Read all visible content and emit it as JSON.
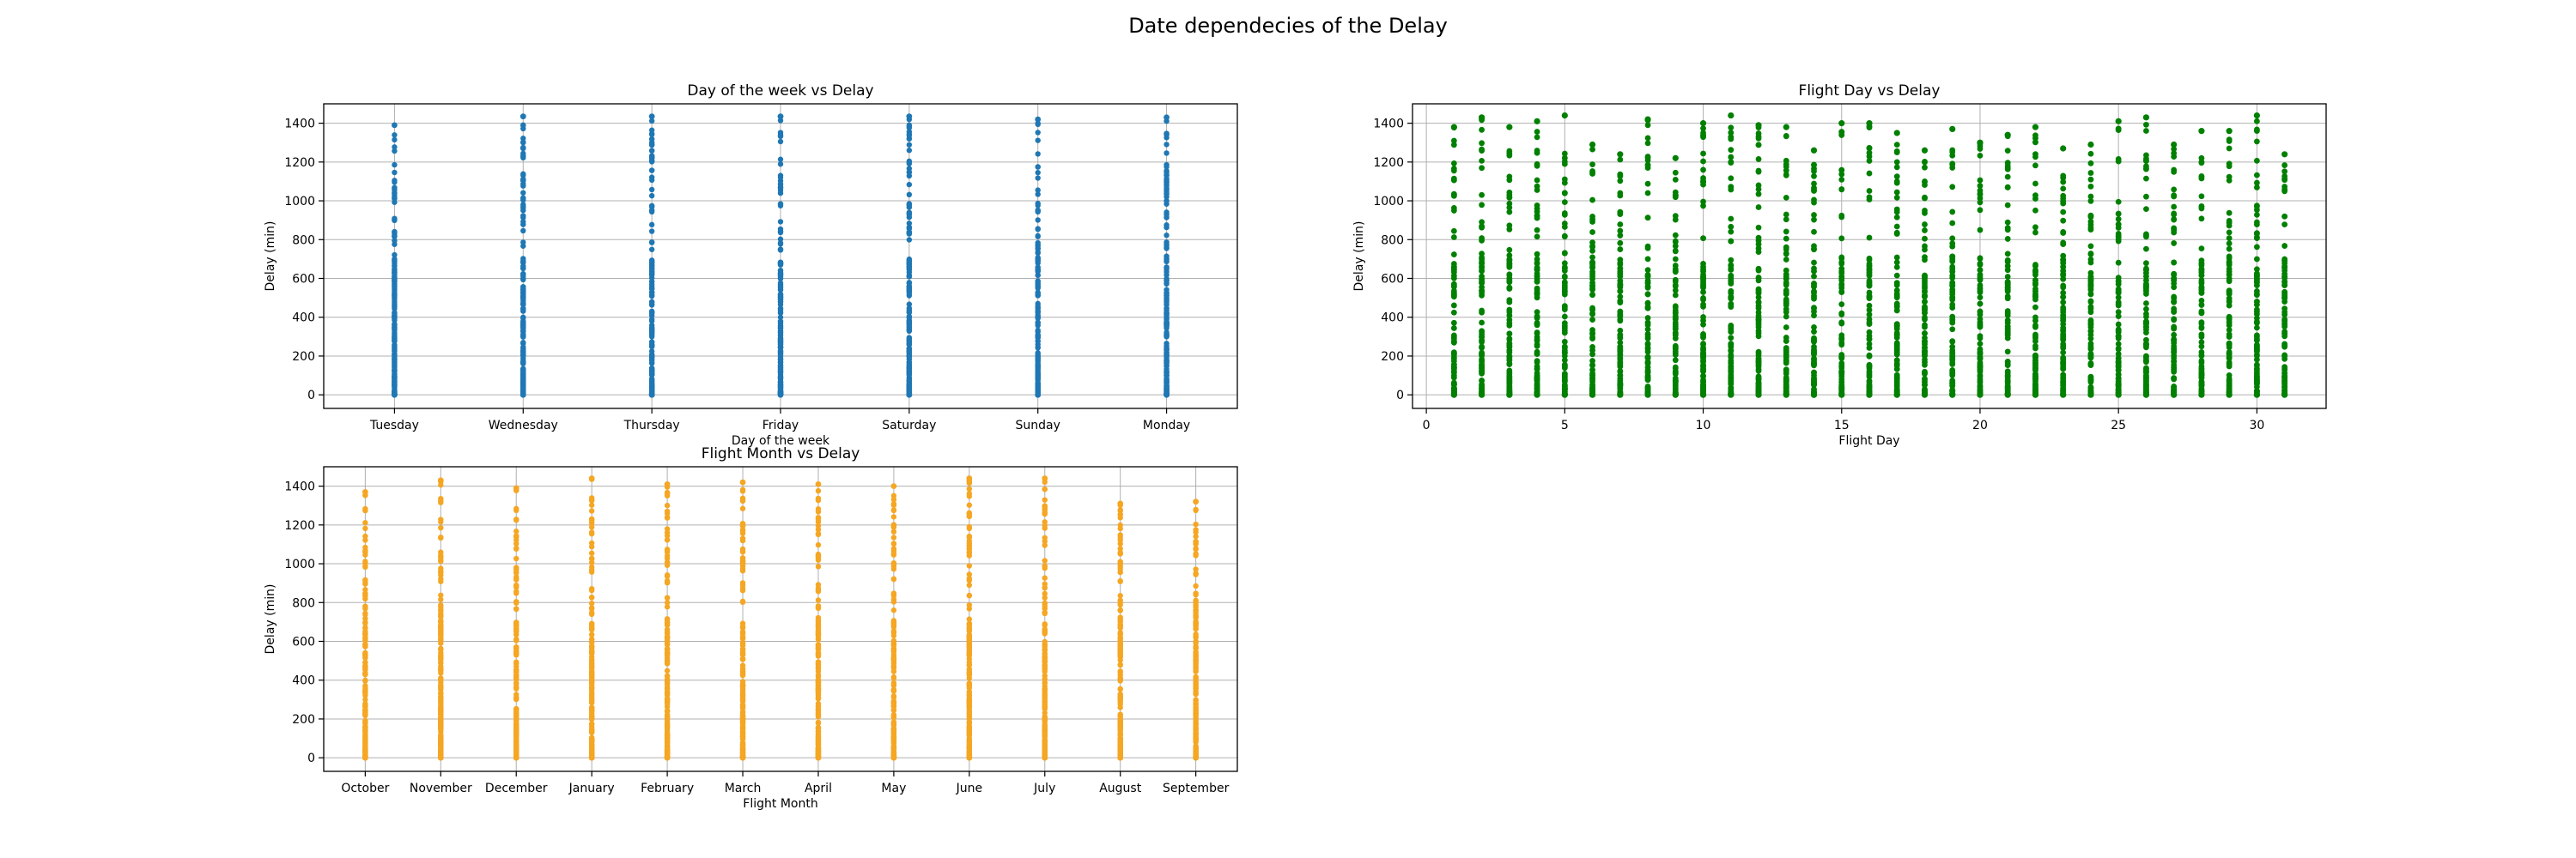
{
  "figure": {
    "suptitle": "Date dependecies of the Delay"
  },
  "chart_data": [
    {
      "id": "weekday",
      "type": "scatter",
      "title": "Day of the week vs Delay",
      "xlabel": "Day of the week",
      "ylabel": "Delay (min)",
      "categories": [
        "Tuesday",
        "Wednesday",
        "Thursday",
        "Friday",
        "Saturday",
        "Sunday",
        "Monday"
      ],
      "y_max": [
        1390,
        1435,
        1435,
        1435,
        1435,
        1420,
        1430
      ],
      "ylim": [
        -70,
        1500
      ],
      "yticks": [
        0,
        200,
        400,
        600,
        800,
        1000,
        1200,
        1400
      ],
      "grid": true,
      "color": "#1f77b4"
    },
    {
      "id": "monthday",
      "type": "scatter",
      "title": "Flight Day vs Delay",
      "xlabel": "Flight Day",
      "ylabel": "Delay (min)",
      "x": [
        1,
        2,
        3,
        4,
        5,
        6,
        7,
        8,
        9,
        10,
        11,
        12,
        13,
        14,
        15,
        16,
        17,
        18,
        19,
        20,
        21,
        22,
        23,
        24,
        25,
        26,
        27,
        28,
        29,
        30,
        31
      ],
      "y_max": [
        1380,
        1430,
        1380,
        1410,
        1440,
        1290,
        1240,
        1420,
        1220,
        1400,
        1440,
        1390,
        1380,
        1260,
        1400,
        1400,
        1350,
        1260,
        1370,
        1300,
        1340,
        1380,
        1270,
        1290,
        1410,
        1430,
        1290,
        1360,
        1360,
        1440,
        1240
      ],
      "xlim": [
        -0.5,
        32.5
      ],
      "xticks": [
        0,
        5,
        10,
        15,
        20,
        25,
        30
      ],
      "ylim": [
        -70,
        1500
      ],
      "yticks": [
        0,
        200,
        400,
        600,
        800,
        1000,
        1200,
        1400
      ],
      "grid": true,
      "color": "#008000"
    },
    {
      "id": "month",
      "type": "scatter",
      "title": "Flight Month vs Delay",
      "xlabel": "Flight Month",
      "ylabel": "Delay (min)",
      "categories": [
        "October",
        "November",
        "December",
        "January",
        "February",
        "March",
        "April",
        "May",
        "June",
        "July",
        "August",
        "September"
      ],
      "y_max": [
        1370,
        1430,
        1390,
        1440,
        1410,
        1420,
        1410,
        1400,
        1440,
        1440,
        1310,
        1320
      ],
      "ylim": [
        -70,
        1500
      ],
      "yticks": [
        0,
        200,
        400,
        600,
        800,
        1000,
        1200,
        1400
      ],
      "grid": true,
      "color": "#f5a623"
    }
  ]
}
